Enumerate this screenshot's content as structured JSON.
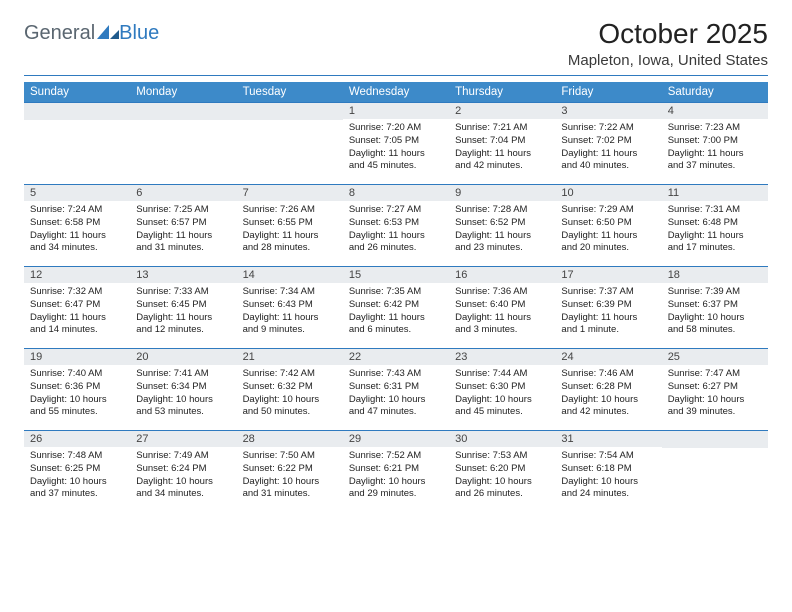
{
  "logo": {
    "part1": "General",
    "part2": "Blue"
  },
  "title": "October 2025",
  "location": "Mapleton, Iowa, United States",
  "colors": {
    "header_bar": "#3d8ac9",
    "divider": "#2f7abf",
    "daynum_bg": "#e9ecef",
    "text": "#222222",
    "logo_gray": "#5a6670",
    "logo_blue": "#2f7abf"
  },
  "weekdays": [
    "Sunday",
    "Monday",
    "Tuesday",
    "Wednesday",
    "Thursday",
    "Friday",
    "Saturday"
  ],
  "weeks": [
    [
      {
        "empty": true
      },
      {
        "empty": true
      },
      {
        "empty": true
      },
      {
        "day": "1",
        "sunrise": "Sunrise: 7:20 AM",
        "sunset": "Sunset: 7:05 PM",
        "daylight": "Daylight: 11 hours and 45 minutes."
      },
      {
        "day": "2",
        "sunrise": "Sunrise: 7:21 AM",
        "sunset": "Sunset: 7:04 PM",
        "daylight": "Daylight: 11 hours and 42 minutes."
      },
      {
        "day": "3",
        "sunrise": "Sunrise: 7:22 AM",
        "sunset": "Sunset: 7:02 PM",
        "daylight": "Daylight: 11 hours and 40 minutes."
      },
      {
        "day": "4",
        "sunrise": "Sunrise: 7:23 AM",
        "sunset": "Sunset: 7:00 PM",
        "daylight": "Daylight: 11 hours and 37 minutes."
      }
    ],
    [
      {
        "day": "5",
        "sunrise": "Sunrise: 7:24 AM",
        "sunset": "Sunset: 6:58 PM",
        "daylight": "Daylight: 11 hours and 34 minutes."
      },
      {
        "day": "6",
        "sunrise": "Sunrise: 7:25 AM",
        "sunset": "Sunset: 6:57 PM",
        "daylight": "Daylight: 11 hours and 31 minutes."
      },
      {
        "day": "7",
        "sunrise": "Sunrise: 7:26 AM",
        "sunset": "Sunset: 6:55 PM",
        "daylight": "Daylight: 11 hours and 28 minutes."
      },
      {
        "day": "8",
        "sunrise": "Sunrise: 7:27 AM",
        "sunset": "Sunset: 6:53 PM",
        "daylight": "Daylight: 11 hours and 26 minutes."
      },
      {
        "day": "9",
        "sunrise": "Sunrise: 7:28 AM",
        "sunset": "Sunset: 6:52 PM",
        "daylight": "Daylight: 11 hours and 23 minutes."
      },
      {
        "day": "10",
        "sunrise": "Sunrise: 7:29 AM",
        "sunset": "Sunset: 6:50 PM",
        "daylight": "Daylight: 11 hours and 20 minutes."
      },
      {
        "day": "11",
        "sunrise": "Sunrise: 7:31 AM",
        "sunset": "Sunset: 6:48 PM",
        "daylight": "Daylight: 11 hours and 17 minutes."
      }
    ],
    [
      {
        "day": "12",
        "sunrise": "Sunrise: 7:32 AM",
        "sunset": "Sunset: 6:47 PM",
        "daylight": "Daylight: 11 hours and 14 minutes."
      },
      {
        "day": "13",
        "sunrise": "Sunrise: 7:33 AM",
        "sunset": "Sunset: 6:45 PM",
        "daylight": "Daylight: 11 hours and 12 minutes."
      },
      {
        "day": "14",
        "sunrise": "Sunrise: 7:34 AM",
        "sunset": "Sunset: 6:43 PM",
        "daylight": "Daylight: 11 hours and 9 minutes."
      },
      {
        "day": "15",
        "sunrise": "Sunrise: 7:35 AM",
        "sunset": "Sunset: 6:42 PM",
        "daylight": "Daylight: 11 hours and 6 minutes."
      },
      {
        "day": "16",
        "sunrise": "Sunrise: 7:36 AM",
        "sunset": "Sunset: 6:40 PM",
        "daylight": "Daylight: 11 hours and 3 minutes."
      },
      {
        "day": "17",
        "sunrise": "Sunrise: 7:37 AM",
        "sunset": "Sunset: 6:39 PM",
        "daylight": "Daylight: 11 hours and 1 minute."
      },
      {
        "day": "18",
        "sunrise": "Sunrise: 7:39 AM",
        "sunset": "Sunset: 6:37 PM",
        "daylight": "Daylight: 10 hours and 58 minutes."
      }
    ],
    [
      {
        "day": "19",
        "sunrise": "Sunrise: 7:40 AM",
        "sunset": "Sunset: 6:36 PM",
        "daylight": "Daylight: 10 hours and 55 minutes."
      },
      {
        "day": "20",
        "sunrise": "Sunrise: 7:41 AM",
        "sunset": "Sunset: 6:34 PM",
        "daylight": "Daylight: 10 hours and 53 minutes."
      },
      {
        "day": "21",
        "sunrise": "Sunrise: 7:42 AM",
        "sunset": "Sunset: 6:32 PM",
        "daylight": "Daylight: 10 hours and 50 minutes."
      },
      {
        "day": "22",
        "sunrise": "Sunrise: 7:43 AM",
        "sunset": "Sunset: 6:31 PM",
        "daylight": "Daylight: 10 hours and 47 minutes."
      },
      {
        "day": "23",
        "sunrise": "Sunrise: 7:44 AM",
        "sunset": "Sunset: 6:30 PM",
        "daylight": "Daylight: 10 hours and 45 minutes."
      },
      {
        "day": "24",
        "sunrise": "Sunrise: 7:46 AM",
        "sunset": "Sunset: 6:28 PM",
        "daylight": "Daylight: 10 hours and 42 minutes."
      },
      {
        "day": "25",
        "sunrise": "Sunrise: 7:47 AM",
        "sunset": "Sunset: 6:27 PM",
        "daylight": "Daylight: 10 hours and 39 minutes."
      }
    ],
    [
      {
        "day": "26",
        "sunrise": "Sunrise: 7:48 AM",
        "sunset": "Sunset: 6:25 PM",
        "daylight": "Daylight: 10 hours and 37 minutes."
      },
      {
        "day": "27",
        "sunrise": "Sunrise: 7:49 AM",
        "sunset": "Sunset: 6:24 PM",
        "daylight": "Daylight: 10 hours and 34 minutes."
      },
      {
        "day": "28",
        "sunrise": "Sunrise: 7:50 AM",
        "sunset": "Sunset: 6:22 PM",
        "daylight": "Daylight: 10 hours and 31 minutes."
      },
      {
        "day": "29",
        "sunrise": "Sunrise: 7:52 AM",
        "sunset": "Sunset: 6:21 PM",
        "daylight": "Daylight: 10 hours and 29 minutes."
      },
      {
        "day": "30",
        "sunrise": "Sunrise: 7:53 AM",
        "sunset": "Sunset: 6:20 PM",
        "daylight": "Daylight: 10 hours and 26 minutes."
      },
      {
        "day": "31",
        "sunrise": "Sunrise: 7:54 AM",
        "sunset": "Sunset: 6:18 PM",
        "daylight": "Daylight: 10 hours and 24 minutes."
      },
      {
        "empty": true
      }
    ]
  ]
}
